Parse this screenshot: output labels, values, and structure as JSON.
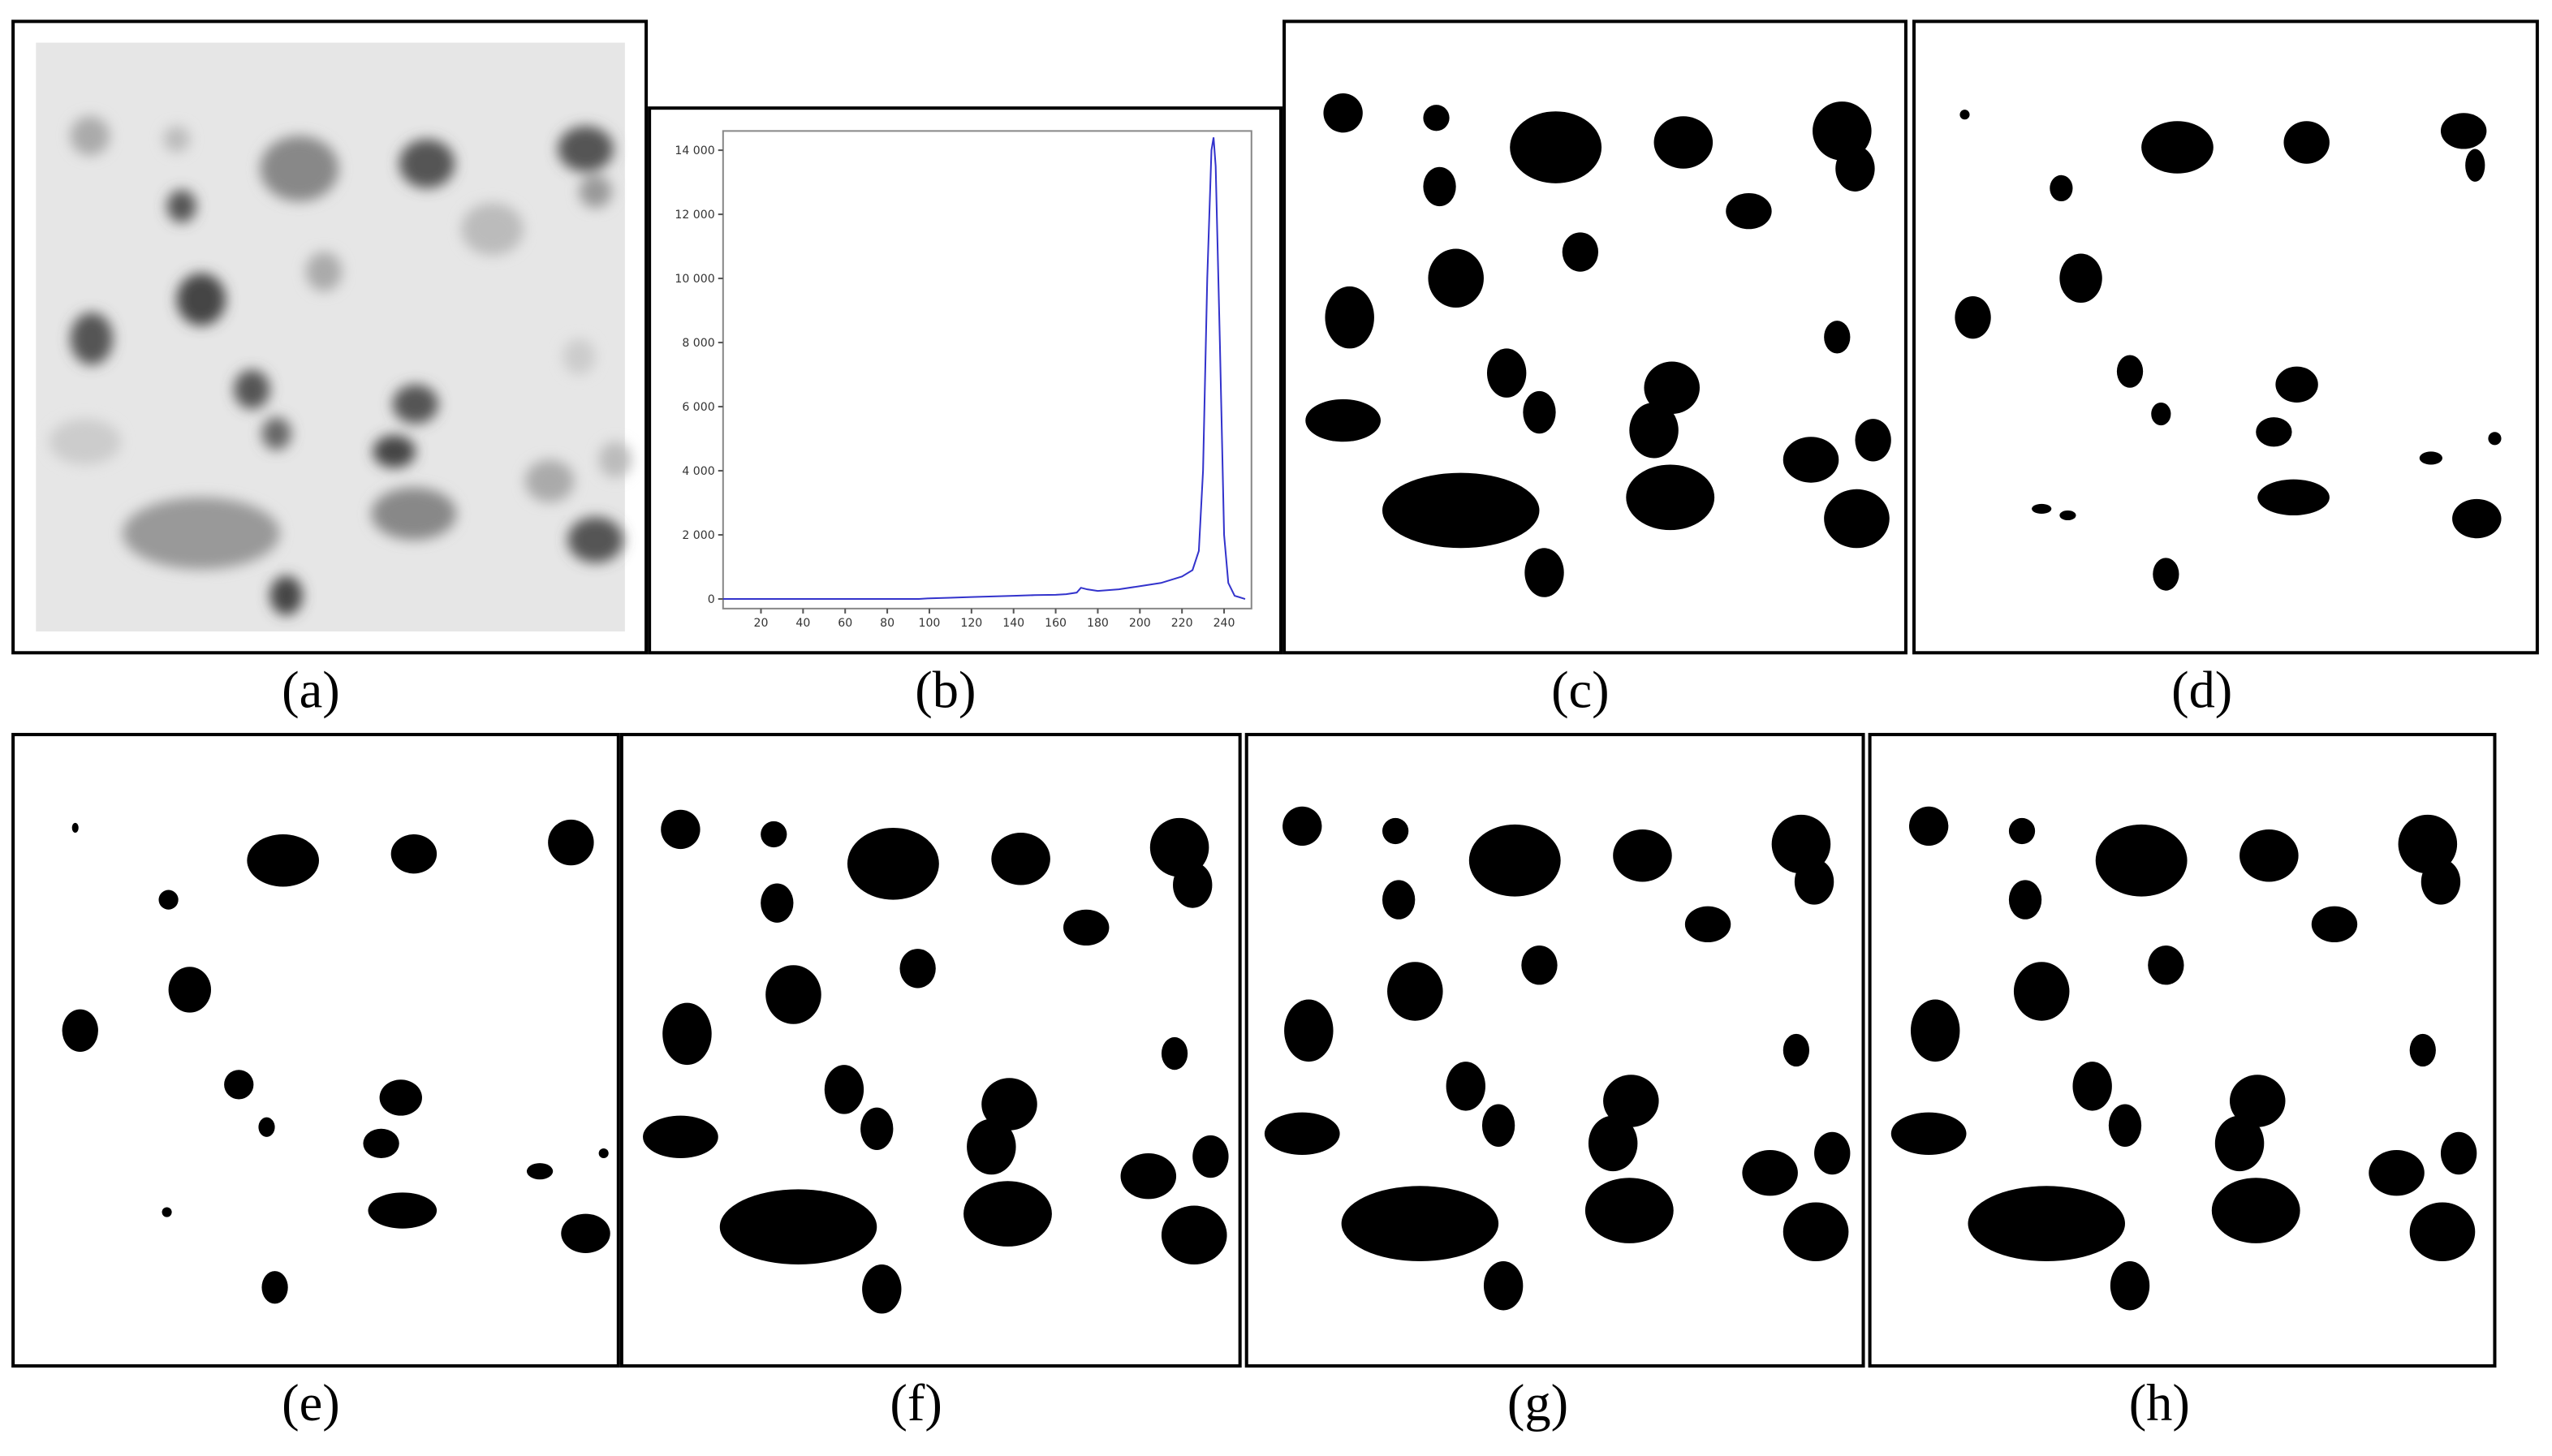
{
  "panels": [
    {
      "label": "(a)"
    },
    {
      "label": "(b)"
    },
    {
      "label": "(c)"
    },
    {
      "label": "(d)"
    },
    {
      "label": "(e)"
    },
    {
      "label": "(f)"
    },
    {
      "label": "(g)"
    },
    {
      "label": "(h)"
    }
  ],
  "chart_data": {
    "type": "line",
    "color": "#3333cc",
    "x": [
      2,
      20,
      40,
      60,
      80,
      95,
      100,
      110,
      120,
      130,
      140,
      150,
      160,
      165,
      170,
      172,
      175,
      180,
      190,
      200,
      205,
      210,
      215,
      220,
      225,
      228,
      230,
      232,
      234,
      235,
      236,
      238,
      240,
      242,
      245,
      250
    ],
    "values": [
      0,
      0,
      0,
      0,
      0,
      0,
      20,
      40,
      60,
      80,
      100,
      120,
      130,
      150,
      200,
      350,
      300,
      250,
      300,
      400,
      450,
      500,
      600,
      700,
      900,
      1500,
      4000,
      10000,
      14000,
      14400,
      13500,
      8000,
      2000,
      500,
      100,
      0
    ],
    "xlim": [
      2,
      253
    ],
    "ylim": [
      -300,
      14600
    ],
    "xticks": [
      20,
      40,
      60,
      80,
      100,
      120,
      140,
      160,
      180,
      200,
      220,
      240
    ],
    "yticks": [
      0,
      {
        "value": 2000,
        "label": "2 000"
      },
      {
        "value": 4000,
        "label": "4 000"
      },
      {
        "value": 6000,
        "label": "6 000"
      },
      {
        "value": 8000,
        "label": "8 000"
      },
      {
        "value": 10000,
        "label": "10 000"
      },
      {
        "value": 12000,
        "label": "12 000"
      },
      {
        "value": 14000,
        "label": "14 000"
      }
    ]
  }
}
